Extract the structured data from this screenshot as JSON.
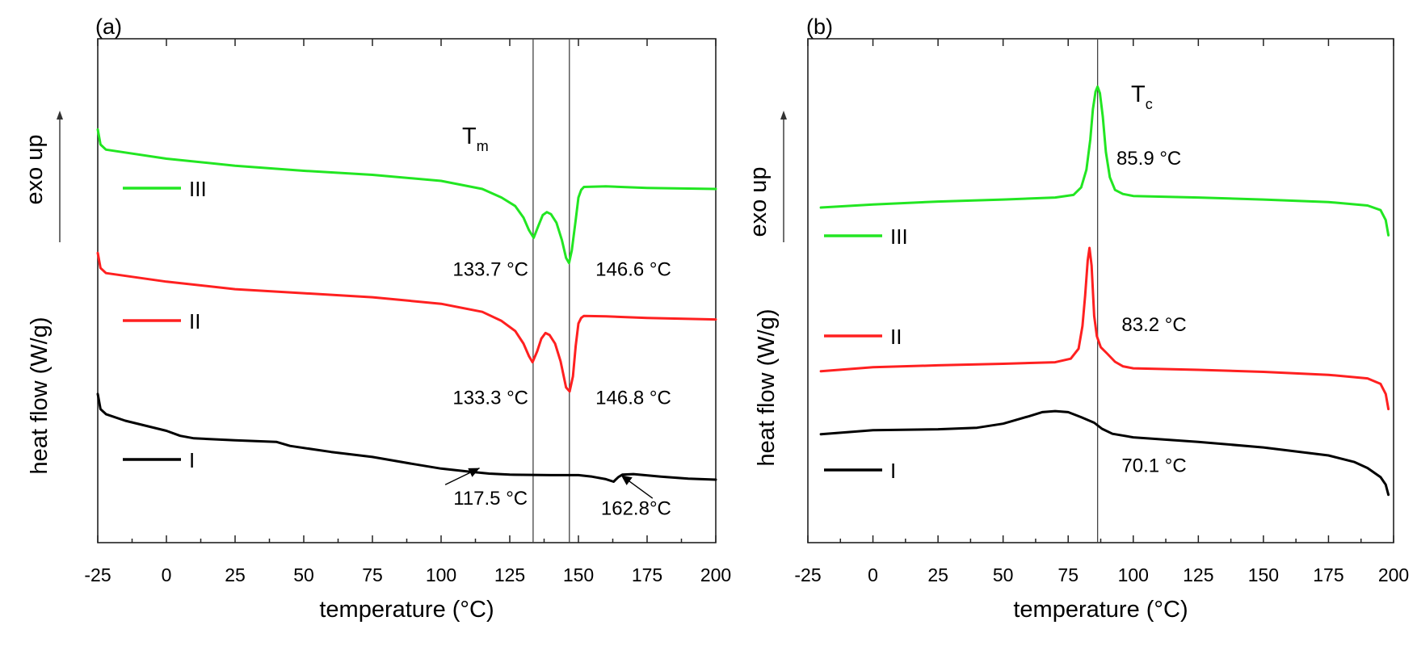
{
  "chart_data": [
    {
      "type": "line",
      "panel_label": "(a)",
      "xlabel": "temperature (°C)",
      "ylabel": "heat flow (W/g)",
      "y_direction_label": "exo up",
      "xlim": [
        -25,
        200
      ],
      "ylim": [
        0,
        100
      ],
      "xticks": [
        -25,
        0,
        25,
        50,
        75,
        100,
        125,
        150,
        175,
        200
      ],
      "ref_lines_x": [
        133.5,
        146.7
      ],
      "ref_label": "T",
      "ref_label_sub": "m",
      "series": [
        {
          "name": "III",
          "color": "#22e622",
          "points": [
            [
              -25,
              82
            ],
            [
              -24,
              79
            ],
            [
              -22,
              78
            ],
            [
              0,
              76.2
            ],
            [
              25,
              74.8
            ],
            [
              50,
              73.8
            ],
            [
              75,
              73
            ],
            [
              100,
              71.8
            ],
            [
              115,
              70.2
            ],
            [
              122,
              68.5
            ],
            [
              127,
              66.8
            ],
            [
              130,
              64.5
            ],
            [
              132,
              62
            ],
            [
              133.7,
              60.5
            ],
            [
              135.5,
              63
            ],
            [
              137,
              65
            ],
            [
              138.5,
              65.6
            ],
            [
              140,
              65.2
            ],
            [
              142,
              63.5
            ],
            [
              144,
              60
            ],
            [
              145.5,
              56.5
            ],
            [
              146.6,
              55.5
            ],
            [
              147.6,
              58
            ],
            [
              149,
              64
            ],
            [
              150,
              68.5
            ],
            [
              151,
              70
            ],
            [
              152,
              70.6
            ],
            [
              160,
              70.7
            ],
            [
              175,
              70.4
            ],
            [
              200,
              70.2
            ]
          ]
        },
        {
          "name": "II",
          "color": "#ff2020",
          "points": [
            [
              -25,
              57.5
            ],
            [
              -24,
              54.5
            ],
            [
              -22,
              53.5
            ],
            [
              0,
              51.8
            ],
            [
              25,
              50.3
            ],
            [
              50,
              49.5
            ],
            [
              75,
              48.7
            ],
            [
              100,
              47.4
            ],
            [
              115,
              45.8
            ],
            [
              122,
              44
            ],
            [
              127,
              42
            ],
            [
              130,
              39.5
            ],
            [
              132,
              37
            ],
            [
              133.3,
              35.8
            ],
            [
              135,
              38
            ],
            [
              136.5,
              40.5
            ],
            [
              138,
              41.6
            ],
            [
              139.5,
              41.2
            ],
            [
              141.5,
              39.5
            ],
            [
              143.5,
              36
            ],
            [
              145.5,
              30.8
            ],
            [
              146.8,
              30
            ],
            [
              148,
              33
            ],
            [
              149,
              39
            ],
            [
              150,
              43.5
            ],
            [
              151,
              44.6
            ],
            [
              152,
              45
            ],
            [
              160,
              44.9
            ],
            [
              175,
              44.6
            ],
            [
              200,
              44.3
            ]
          ]
        },
        {
          "name": "I",
          "color": "#000000",
          "points": [
            [
              -25,
              29.5
            ],
            [
              -24,
              26.5
            ],
            [
              -22,
              25.5
            ],
            [
              -15,
              24.2
            ],
            [
              0,
              22.2
            ],
            [
              5,
              21.2
            ],
            [
              10,
              20.7
            ],
            [
              25,
              20.3
            ],
            [
              40,
              20
            ],
            [
              45,
              19.2
            ],
            [
              60,
              18
            ],
            [
              75,
              17
            ],
            [
              90,
              15.6
            ],
            [
              100,
              14.7
            ],
            [
              110,
              14.1
            ],
            [
              117.5,
              13.7
            ],
            [
              125,
              13.5
            ],
            [
              140,
              13.4
            ],
            [
              150,
              13.4
            ],
            [
              155,
              13.1
            ],
            [
              160,
              12.6
            ],
            [
              162.8,
              12.1
            ],
            [
              164.5,
              13
            ],
            [
              166,
              13.5
            ],
            [
              170,
              13.6
            ],
            [
              180,
              13.1
            ],
            [
              190,
              12.7
            ],
            [
              200,
              12.5
            ]
          ]
        }
      ],
      "legend": [
        {
          "label": "III",
          "color": "#22e622"
        },
        {
          "label": "II",
          "color": "#ff2020"
        },
        {
          "label": "I",
          "color": "#000000"
        }
      ],
      "annotations": [
        {
          "text": "133.7 °C",
          "x": 118,
          "y": 53
        },
        {
          "text": "146.6 °C",
          "x": 170,
          "y": 53
        },
        {
          "text": "133.3 °C",
          "x": 118,
          "y": 27.5
        },
        {
          "text": "146.8 °C",
          "x": 170,
          "y": 27.5
        },
        {
          "text": "117.5 °C",
          "x": 118,
          "y": 7.5
        },
        {
          "text": "162.8°C",
          "x": 171,
          "y": 5.5
        }
      ],
      "arrows": [
        {
          "from": [
            101.5,
            11.5
          ],
          "to": [
            114,
            14.8
          ]
        },
        {
          "from": [
            177,
            8.8
          ],
          "to": [
            165.5,
            13.4
          ]
        }
      ]
    },
    {
      "type": "line",
      "panel_label": "(b)",
      "xlabel": "temperature (°C)",
      "ylabel": "heat flow (W/g)",
      "y_direction_label": "exo up",
      "xlim": [
        -25,
        200
      ],
      "ylim": [
        0,
        100
      ],
      "xticks": [
        -25,
        0,
        25,
        50,
        75,
        100,
        125,
        150,
        175,
        200
      ],
      "ref_lines_x": [
        86.3
      ],
      "ref_label": "T",
      "ref_label_sub": "c",
      "series": [
        {
          "name": "III",
          "color": "#22e622",
          "points": [
            [
              -20,
              66.5
            ],
            [
              0,
              67.1
            ],
            [
              25,
              67.7
            ],
            [
              50,
              68.1
            ],
            [
              70,
              68.5
            ],
            [
              77,
              69
            ],
            [
              80,
              70.5
            ],
            [
              82,
              74
            ],
            [
              83.5,
              80
            ],
            [
              84.5,
              86
            ],
            [
              85.5,
              89.5
            ],
            [
              86.3,
              90.5
            ],
            [
              87.2,
              89.2
            ],
            [
              88.3,
              84.5
            ],
            [
              89.5,
              77.5
            ],
            [
              91,
              72.5
            ],
            [
              93,
              70
            ],
            [
              96,
              69.2
            ],
            [
              100,
              68.8
            ],
            [
              125,
              68.5
            ],
            [
              150,
              68.1
            ],
            [
              175,
              67.6
            ],
            [
              190,
              66.9
            ],
            [
              195,
              66
            ],
            [
              197,
              64
            ],
            [
              198,
              61
            ]
          ]
        },
        {
          "name": "II",
          "color": "#ff2020",
          "points": [
            [
              -20,
              34
            ],
            [
              0,
              34.8
            ],
            [
              25,
              35.2
            ],
            [
              50,
              35.5
            ],
            [
              70,
              35.8
            ],
            [
              76,
              36.5
            ],
            [
              79,
              38.5
            ],
            [
              80.5,
              43
            ],
            [
              81.5,
              49
            ],
            [
              82.5,
              56
            ],
            [
              83.2,
              58.5
            ],
            [
              84,
              55
            ],
            [
              85,
              45
            ],
            [
              86,
              41
            ],
            [
              87.5,
              38.8
            ],
            [
              90,
              37.5
            ],
            [
              93,
              35.9
            ],
            [
              96,
              35
            ],
            [
              100,
              34.6
            ],
            [
              125,
              34.3
            ],
            [
              150,
              33.9
            ],
            [
              175,
              33.3
            ],
            [
              190,
              32.6
            ],
            [
              195,
              31.5
            ],
            [
              197,
              29.5
            ],
            [
              198,
              26.5
            ]
          ]
        },
        {
          "name": "I",
          "color": "#000000",
          "points": [
            [
              -20,
              21.5
            ],
            [
              0,
              22.3
            ],
            [
              25,
              22.5
            ],
            [
              40,
              22.8
            ],
            [
              50,
              23.6
            ],
            [
              60,
              25.1
            ],
            [
              65,
              25.9
            ],
            [
              70,
              26.1
            ],
            [
              75,
              25.9
            ],
            [
              80,
              24.9
            ],
            [
              85,
              23.8
            ],
            [
              88,
              22.6
            ],
            [
              92,
              21.6
            ],
            [
              100,
              20.9
            ],
            [
              125,
              20
            ],
            [
              150,
              18.9
            ],
            [
              175,
              17.3
            ],
            [
              185,
              16
            ],
            [
              190,
              14.8
            ],
            [
              195,
              13
            ],
            [
              197,
              11.5
            ],
            [
              198,
              9.5
            ]
          ]
        }
      ],
      "legend": [
        {
          "label": "III",
          "color": "#22e622"
        },
        {
          "label": "II",
          "color": "#ff2020"
        },
        {
          "label": "I",
          "color": "#000000"
        }
      ],
      "annotations": [
        {
          "text": "85.9 °C",
          "x": 106,
          "y": 75
        },
        {
          "text": "83.2 °C",
          "x": 108,
          "y": 42
        },
        {
          "text": "70.1 °C",
          "x": 108,
          "y": 14
        }
      ],
      "arrows": []
    }
  ]
}
